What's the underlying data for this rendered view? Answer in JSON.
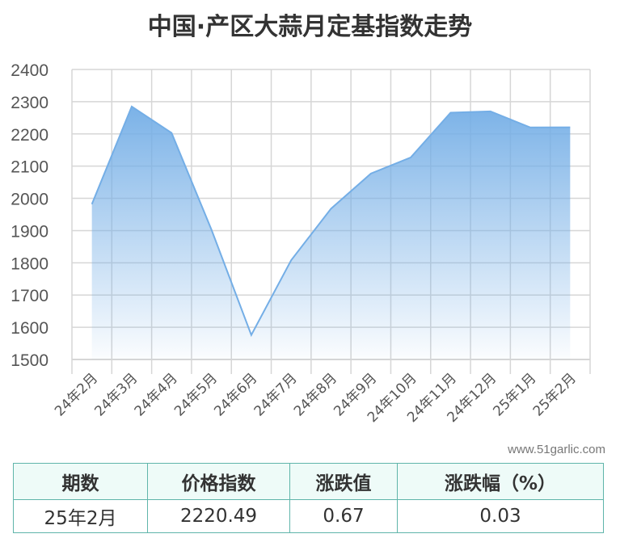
{
  "title": "中国·产区大蒜月定基指数走势",
  "watermark": "www.51garlic.com",
  "colors": {
    "line": "#74aee6",
    "fill_top": "#74aee6",
    "grid": "#d6d6d6",
    "table_border": "#5fb5aa",
    "table_header_bg": "#eefbf8"
  },
  "chart_data": {
    "type": "area",
    "title": "中国·产区大蒜月定基指数走势",
    "categories": [
      "24年2月",
      "24年3月",
      "24年4月",
      "24年5月",
      "24年6月",
      "24年7月",
      "24年8月",
      "24年9月",
      "24年10月",
      "24年11月",
      "24年12月",
      "25年1月",
      "25年2月"
    ],
    "values": [
      1982,
      2285,
      2203,
      1903,
      1576,
      1808,
      1968,
      2077,
      2127,
      2266,
      2270,
      2220,
      2220.49
    ],
    "ylim": [
      1500,
      2400
    ],
    "yticks": [
      1500,
      1600,
      1700,
      1800,
      1900,
      2000,
      2100,
      2200,
      2300,
      2400
    ],
    "grid": true,
    "legend": "none"
  },
  "table": {
    "headers": [
      "期数",
      "价格指数",
      "涨跌值",
      "涨跌幅（%）"
    ],
    "rows": [
      [
        "25年2月",
        "2220.49",
        "0.67",
        "0.03"
      ]
    ]
  }
}
